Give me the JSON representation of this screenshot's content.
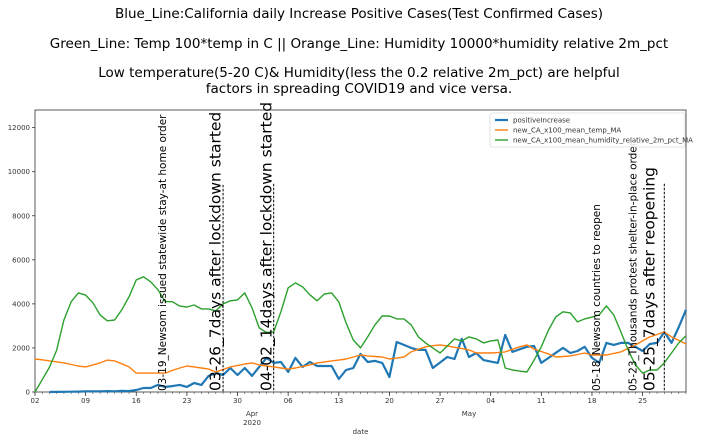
{
  "titles": {
    "line1": "Blue_Line:California daily Increase Positive Cases(Test Confirmed Cases)",
    "line2": "Green_Line: Temp 100*temp in C  ||  Orange_Line: Humidity 10000*humidity relative 2m_pct",
    "line3": "Low temperature(5-20 C)& Humidity(less the 0.2 relative 2m_pct) are helpful",
    "line4": "factors in spreading COVID19 and vice versa."
  },
  "chart_data": {
    "type": "line",
    "xlabel": "date",
    "ylabel": "",
    "xlim": [
      "2020-03-02",
      "2020-05-31"
    ],
    "ylim": [
      0,
      12800
    ],
    "grid": false,
    "legend_position": "top-right",
    "yticks": [
      0,
      2000,
      4000,
      6000,
      8000,
      10000,
      12000
    ],
    "xticks": [
      {
        "date": "2020-03-02",
        "label": "02"
      },
      {
        "date": "2020-03-09",
        "label": "09"
      },
      {
        "date": "2020-03-16",
        "label": "16"
      },
      {
        "date": "2020-03-23",
        "label": "23"
      },
      {
        "date": "2020-03-30",
        "label": "30"
      },
      {
        "date": "2020-04-06",
        "label": "06"
      },
      {
        "date": "2020-04-13",
        "label": "13"
      },
      {
        "date": "2020-04-20",
        "label": "20"
      },
      {
        "date": "2020-04-27",
        "label": "27"
      },
      {
        "date": "2020-05-04",
        "label": "04"
      },
      {
        "date": "2020-05-11",
        "label": "11"
      },
      {
        "date": "2020-05-18",
        "label": "18"
      },
      {
        "date": "2020-05-25",
        "label": "25"
      }
    ],
    "month_labels": [
      {
        "date": "2020-04-01",
        "label": "Apr",
        "sub": "2020"
      },
      {
        "date": "2020-05-01",
        "label": "May",
        "sub": ""
      }
    ],
    "dates": [
      "2020-03-02",
      "2020-03-03",
      "2020-03-04",
      "2020-03-05",
      "2020-03-06",
      "2020-03-07",
      "2020-03-08",
      "2020-03-09",
      "2020-03-10",
      "2020-03-11",
      "2020-03-12",
      "2020-03-13",
      "2020-03-14",
      "2020-03-15",
      "2020-03-16",
      "2020-03-17",
      "2020-03-18",
      "2020-03-19",
      "2020-03-20",
      "2020-03-21",
      "2020-03-22",
      "2020-03-23",
      "2020-03-24",
      "2020-03-25",
      "2020-03-26",
      "2020-03-27",
      "2020-03-28",
      "2020-03-29",
      "2020-03-30",
      "2020-03-31",
      "2020-04-01",
      "2020-04-02",
      "2020-04-03",
      "2020-04-04",
      "2020-04-05",
      "2020-04-06",
      "2020-04-07",
      "2020-04-08",
      "2020-04-09",
      "2020-04-10",
      "2020-04-11",
      "2020-04-12",
      "2020-04-13",
      "2020-04-14",
      "2020-04-15",
      "2020-04-16",
      "2020-04-17",
      "2020-04-18",
      "2020-04-19",
      "2020-04-20",
      "2020-04-21",
      "2020-04-22",
      "2020-04-23",
      "2020-04-24",
      "2020-04-25",
      "2020-04-26",
      "2020-04-27",
      "2020-04-28",
      "2020-04-29",
      "2020-04-30",
      "2020-05-01",
      "2020-05-02",
      "2020-05-03",
      "2020-05-04",
      "2020-05-05",
      "2020-05-06",
      "2020-05-07",
      "2020-05-08",
      "2020-05-09",
      "2020-05-10",
      "2020-05-11",
      "2020-05-12",
      "2020-05-13",
      "2020-05-14",
      "2020-05-15",
      "2020-05-16",
      "2020-05-17",
      "2020-05-18",
      "2020-05-19",
      "2020-05-20",
      "2020-05-21",
      "2020-05-22",
      "2020-05-23",
      "2020-05-24",
      "2020-05-25",
      "2020-05-26",
      "2020-05-27",
      "2020-05-28",
      "2020-05-29",
      "2020-05-30",
      "2020-05-31"
    ],
    "series": [
      {
        "name": "positiveIncrease",
        "color": "#1f77b4",
        "width": 2.2,
        "values": [
          null,
          null,
          0,
          5,
          10,
          15,
          20,
          25,
          30,
          30,
          40,
          30,
          50,
          40,
          90,
          180,
          180,
          320,
          230,
          270,
          320,
          230,
          410,
          320,
          730,
          860,
          770,
          1090,
          770,
          1090,
          730,
          1140,
          1550,
          1320,
          1360,
          910,
          1550,
          1140,
          1360,
          1180,
          1180,
          1180,
          590,
          1000,
          1090,
          1730,
          1360,
          1410,
          1320,
          680,
          2270,
          2140,
          2000,
          1910,
          1910,
          1090,
          1340,
          1590,
          1500,
          2410,
          1590,
          1770,
          1450,
          1380,
          1320,
          2590,
          1820,
          1940,
          2050,
          2090,
          1320,
          1550,
          1780,
          2000,
          1770,
          1860,
          2050,
          1550,
          1320,
          2230,
          2140,
          2230,
          2230,
          2050,
          1860,
          2180,
          2230,
          2730,
          2230,
          2950,
          3730
        ]
      },
      {
        "name": "new_CA_x100_mean_temp_MA",
        "color": "#ff7f0e",
        "width": 1.4,
        "values": [
          1500,
          1460,
          1410,
          1370,
          1320,
          1250,
          1180,
          1140,
          1230,
          1320,
          1450,
          1410,
          1280,
          1140,
          860,
          860,
          860,
          860,
          860,
          980,
          1090,
          1180,
          1140,
          1090,
          1040,
          910,
          1020,
          1140,
          1200,
          1270,
          1320,
          1230,
          1180,
          1140,
          1090,
          1040,
          1090,
          1160,
          1230,
          1320,
          1360,
          1410,
          1450,
          1500,
          1590,
          1680,
          1640,
          1610,
          1590,
          1500,
          1540,
          1590,
          1820,
          1940,
          2050,
          2100,
          2140,
          2090,
          2030,
          1970,
          1910,
          1770,
          1770,
          1770,
          1790,
          1820,
          1940,
          2050,
          2140,
          1950,
          1840,
          1730,
          1590,
          1610,
          1640,
          1700,
          1770,
          1680,
          1680,
          1680,
          1750,
          1820,
          1980,
          2140,
          2320,
          2500,
          2610,
          2730,
          2500,
          2340,
          2180
        ]
      },
      {
        "name": "new_CA_x100_mean_humidity_relative_2m_pct_MA",
        "color": "#2ca02c",
        "width": 1.4,
        "values": [
          0,
          560,
          1130,
          1900,
          3270,
          4100,
          4500,
          4400,
          4050,
          3500,
          3230,
          3270,
          3730,
          4320,
          5090,
          5230,
          5000,
          4640,
          4100,
          4100,
          3900,
          3860,
          3950,
          3770,
          3770,
          3680,
          4000,
          4140,
          4180,
          4500,
          3820,
          2910,
          2700,
          2730,
          3640,
          4730,
          4950,
          4770,
          4410,
          4140,
          4450,
          4500,
          4090,
          3140,
          2360,
          2000,
          2500,
          3050,
          3450,
          3450,
          3320,
          3320,
          3050,
          2500,
          2230,
          2000,
          1770,
          2090,
          2410,
          2320,
          2500,
          2410,
          2230,
          2320,
          2360,
          1090,
          1000,
          950,
          910,
          1450,
          2050,
          2820,
          3410,
          3640,
          3590,
          3180,
          3320,
          3400,
          3500,
          3910,
          3500,
          2730,
          1910,
          1230,
          860,
          1000,
          1000,
          1320,
          1770,
          2230,
          2550
        ]
      }
    ],
    "vlines": [
      {
        "date": "2020-03-28",
        "ymax": 9400
      },
      {
        "date": "2020-04-04",
        "ymax": 9450
      },
      {
        "date": "2020-05-28",
        "ymax": 9450
      }
    ],
    "annotations": [
      {
        "date": "2020-03-19",
        "text": "03-19_Newsom issued statewide stay-at home order",
        "size": "small"
      },
      {
        "date": "2020-03-26",
        "text": "03-26_7days after lockdown started",
        "size": "large"
      },
      {
        "date": "2020-04-02",
        "text": "04-02_14days after lockdown started",
        "size": "large"
      },
      {
        "date": "2020-05-18",
        "text": "05-18_Newsom countries to reopen",
        "size": "small"
      },
      {
        "date": "2020-05-23",
        "text": "05-23_Thousands protest shelter-in-place order",
        "size": "small"
      },
      {
        "date": "2020-05-25",
        "text": "05-25_7days after reopening",
        "size": "large"
      }
    ]
  }
}
